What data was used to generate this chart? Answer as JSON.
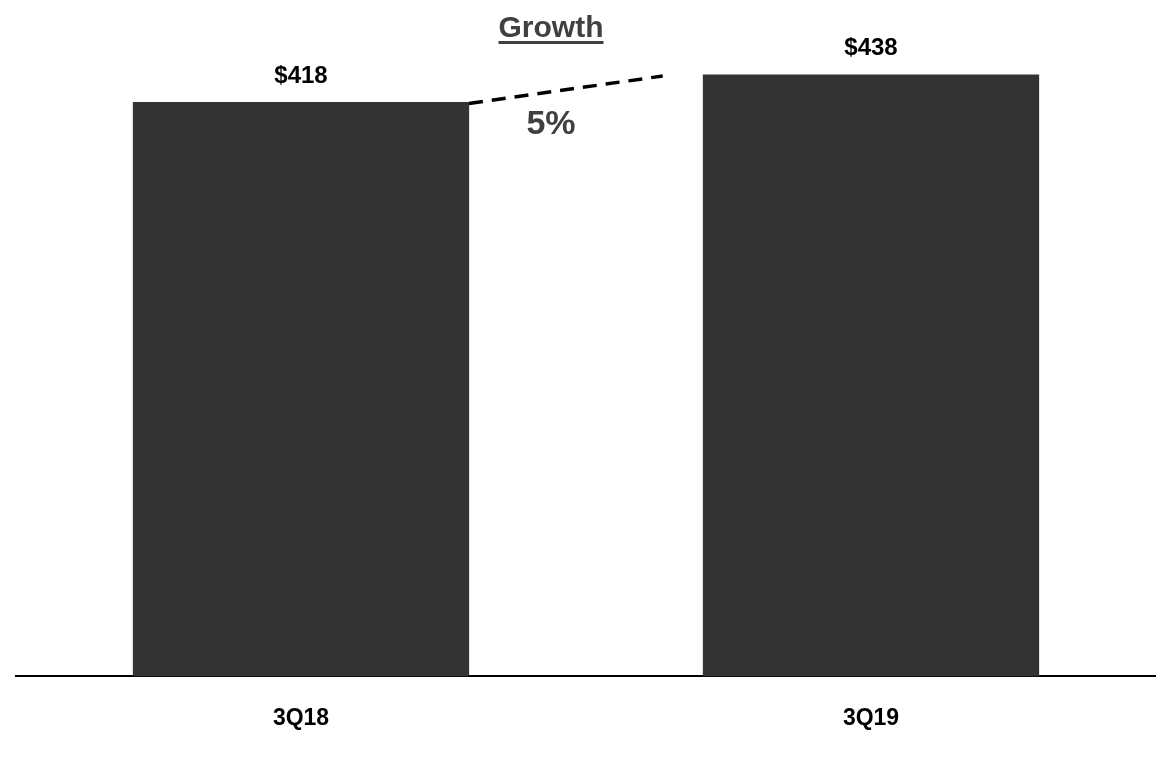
{
  "chart_data": {
    "type": "bar",
    "categories": [
      "3Q18",
      "3Q19"
    ],
    "values": [
      418,
      438
    ],
    "value_labels": [
      "$418",
      "$438"
    ],
    "color": "#333333",
    "tick_labels": "x",
    "grid": false,
    "legend": false,
    "annotations": [
      "Growth",
      "5%"
    ]
  }
}
